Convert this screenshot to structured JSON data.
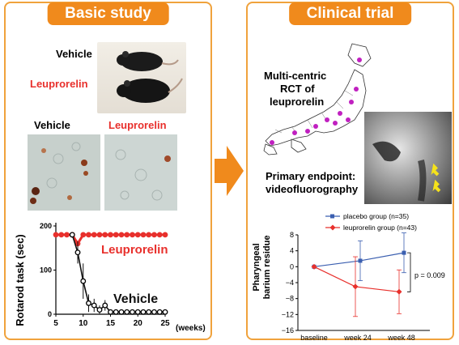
{
  "left_panel": {
    "title": "Basic study",
    "mice": {
      "vehicle_label": "Vehicle",
      "leuprorelin_label": "Leuprorelin"
    },
    "histology": {
      "vehicle_label": "Vehicle",
      "leuprorelin_label": "Leuprorelin"
    },
    "rotarod": {
      "ylabel": "Rotarod task (sec)",
      "xunit": "(weeks)",
      "leuprorelin_series_label": "Leuprorelin",
      "vehicle_series_label": "Vehicle"
    }
  },
  "arrow": {
    "color": "#f08a1c"
  },
  "right_panel": {
    "title": "Clinical trial",
    "map_text_1": "Multi-centric",
    "map_text_2": "RCT of",
    "map_text_3": "leuprorelin",
    "endpoint_text_1": "Primary endpoint:",
    "endpoint_text_2": "videofluorography",
    "residue": {
      "ylabel_1": "Pharyngeal",
      "ylabel_2": "barium residue",
      "p_value": "p = 0.009"
    }
  },
  "chart_data": [
    {
      "type": "line",
      "ylabel": "Rotarod task (sec)",
      "xlabel": "(weeks)",
      "xlim": [
        5,
        25
      ],
      "ylim": [
        0,
        200
      ],
      "xticks": [
        "5",
        "10",
        "15",
        "20",
        "25"
      ],
      "yticks": [
        "0",
        "100",
        "200"
      ],
      "series": [
        {
          "name": "Leuprorelin",
          "color": "#e8302c",
          "x": [
            5,
            6,
            7,
            8,
            9,
            10,
            11,
            12,
            13,
            14,
            15,
            16,
            17,
            18,
            19,
            20,
            21,
            22,
            23,
            24,
            25
          ],
          "y": [
            180,
            180,
            180,
            180,
            160,
            180,
            180,
            180,
            180,
            180,
            180,
            180,
            180,
            180,
            180,
            180,
            180,
            180,
            180,
            180,
            180
          ]
        },
        {
          "name": "Vehicle",
          "color": "#111111",
          "x": [
            8,
            9,
            10,
            11,
            12,
            13,
            14,
            15,
            16,
            17,
            18,
            19,
            20,
            21,
            22,
            23,
            24,
            25
          ],
          "y": [
            180,
            140,
            75,
            25,
            20,
            10,
            20,
            5,
            5,
            5,
            5,
            5,
            5,
            5,
            5,
            5,
            5,
            5
          ],
          "err": [
            0,
            25,
            40,
            20,
            15,
            10,
            12,
            5,
            0,
            0,
            0,
            0,
            0,
            0,
            0,
            0,
            0,
            0
          ]
        }
      ]
    },
    {
      "type": "line",
      "ylabel": "Pharyngeal barium residue",
      "categories": [
        "baseline",
        "week 24",
        "week 48"
      ],
      "ylim": [
        -16,
        8
      ],
      "yticks": [
        "8",
        "4",
        "0",
        "−4",
        "−8",
        "−12",
        "−16"
      ],
      "series": [
        {
          "name": "placebo group (n=35)",
          "color": "#3b5fb0",
          "values": [
            0,
            1.5,
            3.5
          ],
          "err": [
            0,
            5,
            5
          ]
        },
        {
          "name": "leuprorelin group (n=43)",
          "color": "#e8302c",
          "values": [
            0,
            -5,
            -6.3
          ],
          "err": [
            0,
            7.5,
            5.5
          ]
        }
      ],
      "annotation": "p = 0.009"
    }
  ]
}
